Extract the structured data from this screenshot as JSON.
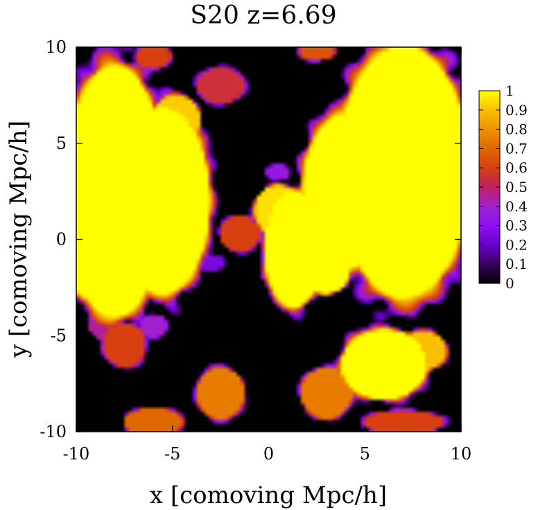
{
  "chart_data": {
    "type": "heatmap",
    "title": "S20 z=6.69",
    "xlabel": "x [comoving Mpc/h]",
    "ylabel": "y [comoving Mpc/h]",
    "xlim": [
      -10,
      10
    ],
    "ylim": [
      -10,
      10
    ],
    "xticks": [
      -10,
      -5,
      0,
      5,
      10
    ],
    "yticks": [
      -10,
      -5,
      0,
      5,
      10
    ],
    "xtick_labels": [
      "-10",
      "-5",
      "0",
      "5",
      "10"
    ],
    "ytick_labels": [
      "-10",
      "-5",
      "0",
      "5",
      "10"
    ],
    "colorbar": {
      "range": [
        0,
        1
      ],
      "ticks": [
        0,
        0.1,
        0.2,
        0.3,
        0.4,
        0.5,
        0.6,
        0.7,
        0.8,
        0.9,
        1
      ],
      "tick_labels": [
        "0",
        "0.1",
        "0.2",
        "0.3",
        "0.4",
        "0.5",
        "0.6",
        "0.7",
        "0.8",
        "0.9",
        "1"
      ],
      "colormap": [
        "#000000",
        "#3a0060",
        "#6a00c8",
        "#8c10f0",
        "#a020d0",
        "#c02060",
        "#d84010",
        "#e06800",
        "#f09000",
        "#f8c000",
        "#ffff00"
      ]
    },
    "grid": false,
    "regions": [
      {
        "cx": -8.0,
        "cy": 2.5,
        "rx": 2.6,
        "ry": 6.5,
        "v": 1.0
      },
      {
        "cx": -5.5,
        "cy": 2.0,
        "rx": 2.4,
        "ry": 4.8,
        "v": 1.0
      },
      {
        "cx": -4.8,
        "cy": 6.2,
        "rx": 1.2,
        "ry": 1.3,
        "v": 0.92
      },
      {
        "cx": -9.5,
        "cy": -0.5,
        "rx": 0.9,
        "ry": 2.5,
        "v": 1.0
      },
      {
        "cx": 7.0,
        "cy": 3.5,
        "rx": 3.4,
        "ry": 6.5,
        "v": 1.0
      },
      {
        "cx": 4.0,
        "cy": 2.5,
        "rx": 2.2,
        "ry": 4.0,
        "v": 1.0
      },
      {
        "cx": 3.0,
        "cy": -1.5,
        "rx": 1.2,
        "ry": 1.3,
        "v": 1.0
      },
      {
        "cx": 1.3,
        "cy": -0.5,
        "rx": 1.5,
        "ry": 3.0,
        "v": 1.0
      },
      {
        "cx": 0.5,
        "cy": 1.5,
        "rx": 1.2,
        "ry": 1.3,
        "v": 0.95
      },
      {
        "cx": -1.5,
        "cy": 0.3,
        "rx": 1.0,
        "ry": 0.9,
        "v": 0.6
      },
      {
        "cx": 6.0,
        "cy": -6.5,
        "rx": 2.2,
        "ry": 1.8,
        "v": 1.0
      },
      {
        "cx": 8.0,
        "cy": -5.8,
        "rx": 1.2,
        "ry": 1.0,
        "v": 0.9
      },
      {
        "cx": 3.0,
        "cy": -8.0,
        "rx": 1.3,
        "ry": 1.3,
        "v": 0.75
      },
      {
        "cx": 7.0,
        "cy": -9.5,
        "rx": 2.0,
        "ry": 0.6,
        "v": 0.6
      },
      {
        "cx": -7.5,
        "cy": -5.5,
        "rx": 1.1,
        "ry": 1.1,
        "v": 0.6
      },
      {
        "cx": -8.5,
        "cy": -4.5,
        "rx": 0.8,
        "ry": 0.7,
        "v": 0.45
      },
      {
        "cx": -6.0,
        "cy": -4.5,
        "rx": 0.7,
        "ry": 0.6,
        "v": 0.4
      },
      {
        "cx": -2.5,
        "cy": -8.0,
        "rx": 1.2,
        "ry": 1.3,
        "v": 0.75
      },
      {
        "cx": -6.0,
        "cy": -9.5,
        "rx": 1.5,
        "ry": 0.7,
        "v": 0.7
      },
      {
        "cx": -2.5,
        "cy": 8.0,
        "rx": 1.2,
        "ry": 0.9,
        "v": 0.55
      },
      {
        "cx": -6.0,
        "cy": 9.5,
        "rx": 0.9,
        "ry": 0.6,
        "v": 0.6
      },
      {
        "cx": 2.5,
        "cy": 9.8,
        "rx": 0.9,
        "ry": 0.5,
        "v": 0.65
      },
      {
        "cx": 0.5,
        "cy": 3.5,
        "rx": 0.6,
        "ry": 0.4,
        "v": 0.35
      },
      {
        "cx": -3.0,
        "cy": -1.2,
        "rx": 0.7,
        "ry": 0.4,
        "v": 0.25
      }
    ]
  }
}
